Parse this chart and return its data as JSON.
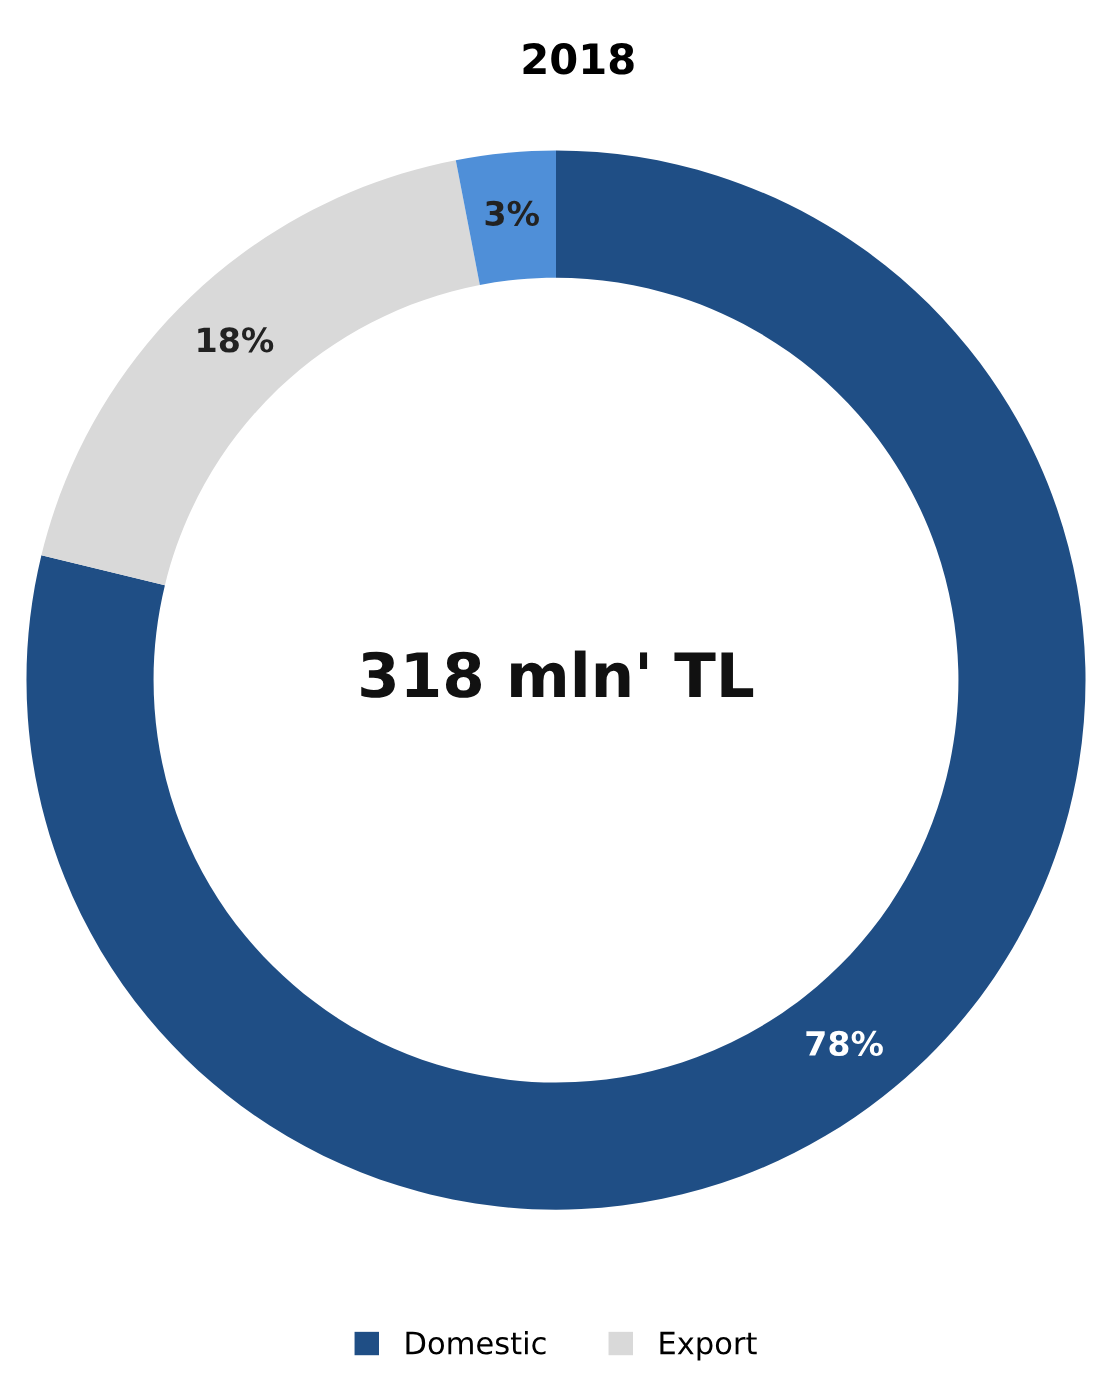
{
  "chart_data": {
    "type": "donut",
    "title": "2018",
    "categories": [
      "Domestic",
      "Export",
      null
    ],
    "values": [
      78,
      18,
      3
    ],
    "colors": [
      "#1f4e85",
      "#d9d9d9",
      "#4f8fd8"
    ],
    "value_labels": [
      "78%",
      "18%",
      "3%"
    ],
    "annotations": [
      "318 mln' TL"
    ],
    "legend": "bottom"
  }
}
